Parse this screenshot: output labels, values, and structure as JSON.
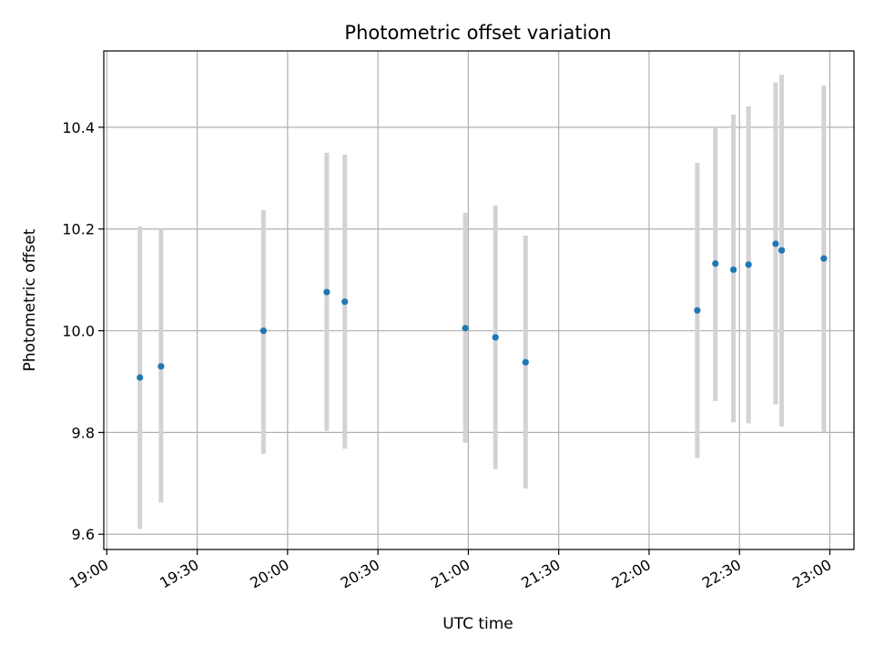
{
  "chart_data": {
    "type": "scatter",
    "title": "Photometric offset variation",
    "xlabel": "UTC time",
    "ylabel": "Photometric offset",
    "x_axis_type": "time",
    "xlim": [
      "18:59",
      "23:08"
    ],
    "ylim": [
      9.57,
      10.55
    ],
    "x_ticks": [
      "19:00",
      "19:30",
      "20:00",
      "20:30",
      "21:00",
      "21:30",
      "22:00",
      "22:30",
      "23:00"
    ],
    "y_ticks": [
      "9.6",
      "9.8",
      "10.0",
      "10.2",
      "10.4"
    ],
    "y_tick_values": [
      9.6,
      9.8,
      10.0,
      10.2,
      10.4
    ],
    "grid": true,
    "colors": {
      "point": "#1f77b4",
      "errorbar": "#d3d3d3",
      "grid": "#b0b0b0"
    },
    "points": [
      {
        "time": "19:11",
        "y": 9.908,
        "low": 9.61,
        "high": 10.205
      },
      {
        "time": "19:18",
        "y": 9.93,
        "low": 9.662,
        "high": 10.2
      },
      {
        "time": "19:52",
        "y": 10.0,
        "low": 9.758,
        "high": 10.237
      },
      {
        "time": "20:13",
        "y": 10.076,
        "low": 9.803,
        "high": 10.35
      },
      {
        "time": "20:19",
        "y": 10.057,
        "low": 9.768,
        "high": 10.346
      },
      {
        "time": "20:59",
        "y": 10.005,
        "low": 9.78,
        "high": 10.232
      },
      {
        "time": "21:09",
        "y": 9.987,
        "low": 9.728,
        "high": 10.246
      },
      {
        "time": "21:19",
        "y": 9.938,
        "low": 9.69,
        "high": 10.187
      },
      {
        "time": "22:16",
        "y": 10.04,
        "low": 9.75,
        "high": 10.33
      },
      {
        "time": "22:22",
        "y": 10.132,
        "low": 9.862,
        "high": 10.4
      },
      {
        "time": "22:28",
        "y": 10.12,
        "low": 9.82,
        "high": 10.425
      },
      {
        "time": "22:33",
        "y": 10.13,
        "low": 9.818,
        "high": 10.441
      },
      {
        "time": "22:42",
        "y": 10.171,
        "low": 9.855,
        "high": 10.488
      },
      {
        "time": "22:44",
        "y": 10.158,
        "low": 9.812,
        "high": 10.503
      },
      {
        "time": "22:58",
        "y": 10.142,
        "low": 9.8,
        "high": 10.482
      }
    ]
  }
}
